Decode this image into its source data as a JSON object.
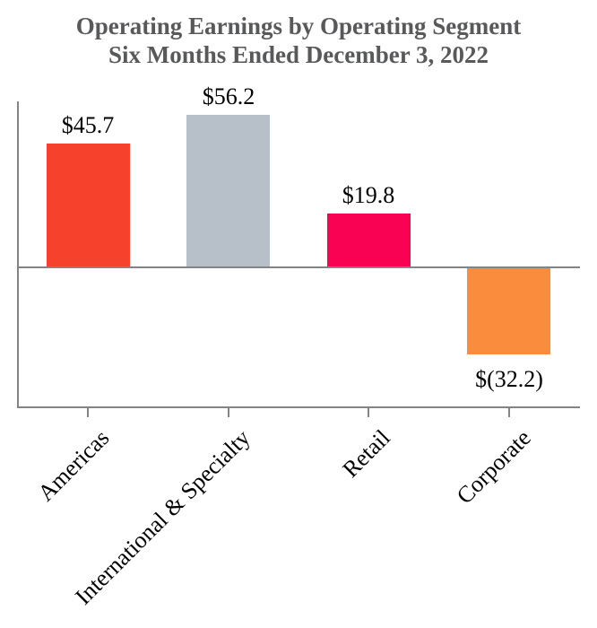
{
  "chart_data": {
    "type": "bar",
    "title": "Operating Earnings by Operating Segment",
    "subtitle": "Six Months Ended December 3, 2022",
    "categories": [
      "Americas",
      "International & Specialty",
      "Retail",
      "Corporate"
    ],
    "values": [
      45.7,
      56.2,
      19.8,
      -32.2
    ],
    "data_labels": [
      "$45.7",
      "$56.2",
      "$19.8",
      "$(32.2)"
    ],
    "bar_colors": [
      "#f6412d",
      "#b7c0c9",
      "#fa0254",
      "#f98c3d"
    ],
    "xlabel": "",
    "ylabel": "",
    "ylim": [
      -52,
      61
    ],
    "baseline": 0,
    "grid": false,
    "legend": false
  },
  "colors": {
    "title": "#58595b",
    "axis": "#848484",
    "data_label": "#000000",
    "background": "#ffffff"
  }
}
